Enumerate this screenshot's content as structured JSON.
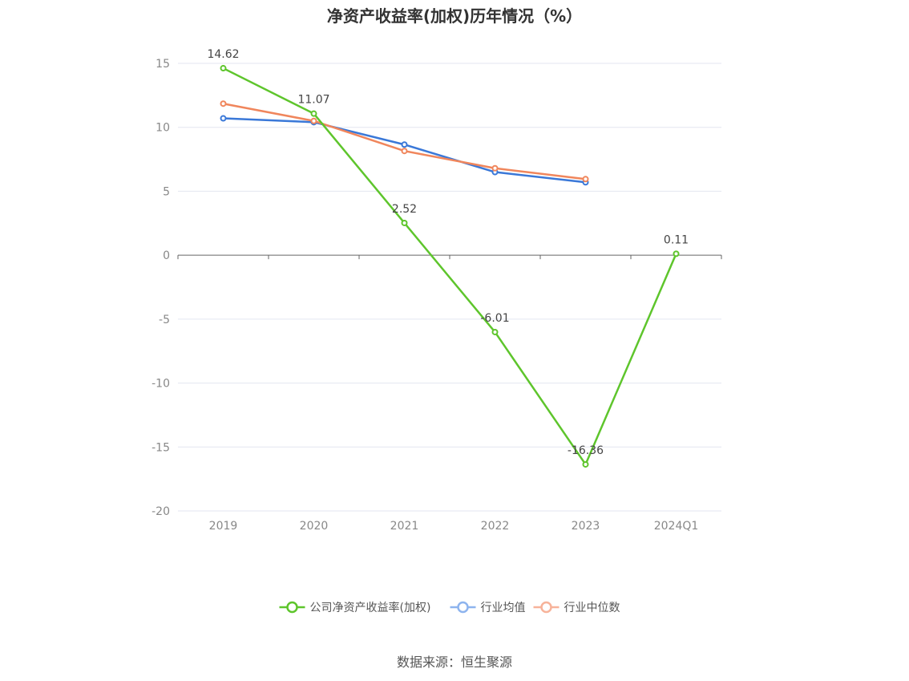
{
  "chart_data": {
    "type": "line",
    "title": "净资产收益率(加权)历年情况（%）",
    "categories": [
      "2019",
      "2020",
      "2021",
      "2022",
      "2023",
      "2024Q1"
    ],
    "ylim": [
      -20,
      15
    ],
    "yticks": [
      15,
      10,
      5,
      0,
      -5,
      -10,
      -15,
      -20
    ],
    "grid": true,
    "legend_position": "bottom-center",
    "series": [
      {
        "name": "公司净资产收益率(加权)",
        "color": "#5ec52c",
        "values": [
          14.62,
          11.07,
          2.52,
          -6.01,
          -16.36,
          0.11
        ],
        "labels": [
          "14.62",
          "11.07",
          "2.52",
          "-6.01",
          "-16.36",
          "0.11"
        ]
      },
      {
        "name": "行业均值",
        "color": "#3a78d8",
        "values": [
          10.7,
          10.4,
          8.65,
          6.5,
          5.7,
          null
        ]
      },
      {
        "name": "行业中位数",
        "color": "#f0865c",
        "values": [
          11.85,
          10.5,
          8.15,
          6.8,
          5.95,
          null
        ]
      }
    ],
    "legend_colors": [
      "#5ec52c",
      "#8eb4ee",
      "#f7b39a"
    ]
  },
  "source": "数据来源：恒生聚源"
}
